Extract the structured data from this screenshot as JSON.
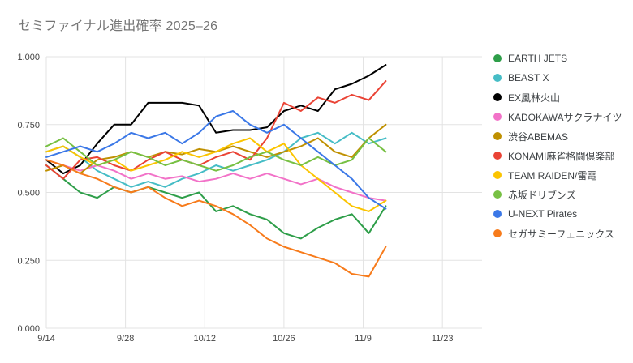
{
  "title": "セミファイナル進出確率 2025–26",
  "chart_data": {
    "type": "line",
    "title": "セミファイナル進出確率 2025–26",
    "xlabel": "",
    "ylabel": "",
    "xlim": [
      0,
      77
    ],
    "ylim": [
      0.0,
      1.0
    ],
    "grid": true,
    "legend_position": "right",
    "x_ticks": [
      {
        "label": "9/14",
        "day": 0
      },
      {
        "label": "9/28",
        "day": 14
      },
      {
        "label": "10/12",
        "day": 28
      },
      {
        "label": "10/26",
        "day": 42
      },
      {
        "label": "11/9",
        "day": 56
      },
      {
        "label": "11/23",
        "day": 70
      }
    ],
    "y_ticks": [
      {
        "label": "0.000",
        "value": 0.0
      },
      {
        "label": "0.250",
        "value": 0.25
      },
      {
        "label": "0.500",
        "value": 0.5
      },
      {
        "label": "0.750",
        "value": 0.75
      },
      {
        "label": "1.000",
        "value": 1.0
      }
    ],
    "days": [
      0,
      3,
      6,
      9,
      12,
      15,
      18,
      21,
      24,
      27,
      30,
      33,
      36,
      39,
      42,
      45,
      48,
      51,
      54,
      57,
      60
    ],
    "series": [
      {
        "name": "EARTH JETS",
        "color": "#2E9E49",
        "values": [
          0.6,
          0.55,
          0.5,
          0.48,
          0.52,
          0.5,
          0.52,
          0.5,
          0.48,
          0.5,
          0.43,
          0.45,
          0.42,
          0.4,
          0.35,
          0.33,
          0.37,
          0.4,
          0.42,
          0.35,
          0.45
        ]
      },
      {
        "name": "BEAST X",
        "color": "#46BDC6",
        "values": [
          0.65,
          0.67,
          0.63,
          0.58,
          0.55,
          0.52,
          0.54,
          0.52,
          0.55,
          0.57,
          0.6,
          0.58,
          0.6,
          0.62,
          0.65,
          0.7,
          0.72,
          0.68,
          0.72,
          0.68,
          0.7
        ]
      },
      {
        "name": "EX風林火山",
        "color": "#000000",
        "values": [
          0.62,
          0.57,
          0.6,
          0.68,
          0.75,
          0.75,
          0.83,
          0.83,
          0.83,
          0.82,
          0.72,
          0.73,
          0.73,
          0.74,
          0.8,
          0.82,
          0.8,
          0.88,
          0.9,
          0.93,
          0.97
        ]
      },
      {
        "name": "KADOKAWAサクラナイツ",
        "color": "#F272C8",
        "values": [
          0.62,
          0.6,
          0.58,
          0.6,
          0.58,
          0.55,
          0.57,
          0.55,
          0.56,
          0.54,
          0.55,
          0.57,
          0.55,
          0.57,
          0.55,
          0.53,
          0.55,
          0.52,
          0.5,
          0.48,
          0.47
        ]
      },
      {
        "name": "渋谷ABEMAS",
        "color": "#BF9000",
        "values": [
          0.58,
          0.6,
          0.57,
          0.62,
          0.63,
          0.65,
          0.63,
          0.65,
          0.64,
          0.66,
          0.65,
          0.67,
          0.65,
          0.63,
          0.65,
          0.67,
          0.7,
          0.65,
          0.63,
          0.7,
          0.75
        ]
      },
      {
        "name": "KONAMI麻雀格闘倶楽部",
        "color": "#EA4335",
        "values": [
          0.6,
          0.55,
          0.62,
          0.63,
          0.6,
          0.58,
          0.62,
          0.65,
          0.62,
          0.6,
          0.63,
          0.65,
          0.62,
          0.7,
          0.83,
          0.8,
          0.85,
          0.83,
          0.86,
          0.84,
          0.91
        ]
      },
      {
        "name": "TEAM RAIDEN/雷電",
        "color": "#FBC400",
        "values": [
          0.65,
          0.67,
          0.63,
          0.6,
          0.62,
          0.58,
          0.6,
          0.62,
          0.65,
          0.63,
          0.65,
          0.68,
          0.7,
          0.65,
          0.68,
          0.6,
          0.55,
          0.5,
          0.45,
          0.43,
          0.47
        ]
      },
      {
        "name": "赤坂ドリブンズ",
        "color": "#77C043",
        "values": [
          0.67,
          0.7,
          0.65,
          0.6,
          0.62,
          0.65,
          0.63,
          0.6,
          0.62,
          0.6,
          0.58,
          0.6,
          0.63,
          0.65,
          0.62,
          0.6,
          0.63,
          0.6,
          0.62,
          0.7,
          0.65
        ]
      },
      {
        "name": "U-NEXT Pirates",
        "color": "#3B78E7",
        "values": [
          0.63,
          0.65,
          0.67,
          0.65,
          0.68,
          0.72,
          0.7,
          0.72,
          0.68,
          0.72,
          0.78,
          0.8,
          0.75,
          0.72,
          0.75,
          0.7,
          0.65,
          0.6,
          0.55,
          0.48,
          0.44
        ]
      },
      {
        "name": "セガサミーフェニックス",
        "color": "#F77B1B",
        "values": [
          0.62,
          0.6,
          0.57,
          0.55,
          0.52,
          0.5,
          0.52,
          0.48,
          0.45,
          0.47,
          0.45,
          0.42,
          0.38,
          0.33,
          0.3,
          0.28,
          0.26,
          0.24,
          0.2,
          0.19,
          0.3
        ]
      }
    ]
  },
  "style": {
    "grid_color": "#e3e3e3",
    "axis_label_color": "#444444",
    "title_color": "#757575",
    "legend_text_color": "#3c4043",
    "background": "#ffffff"
  }
}
